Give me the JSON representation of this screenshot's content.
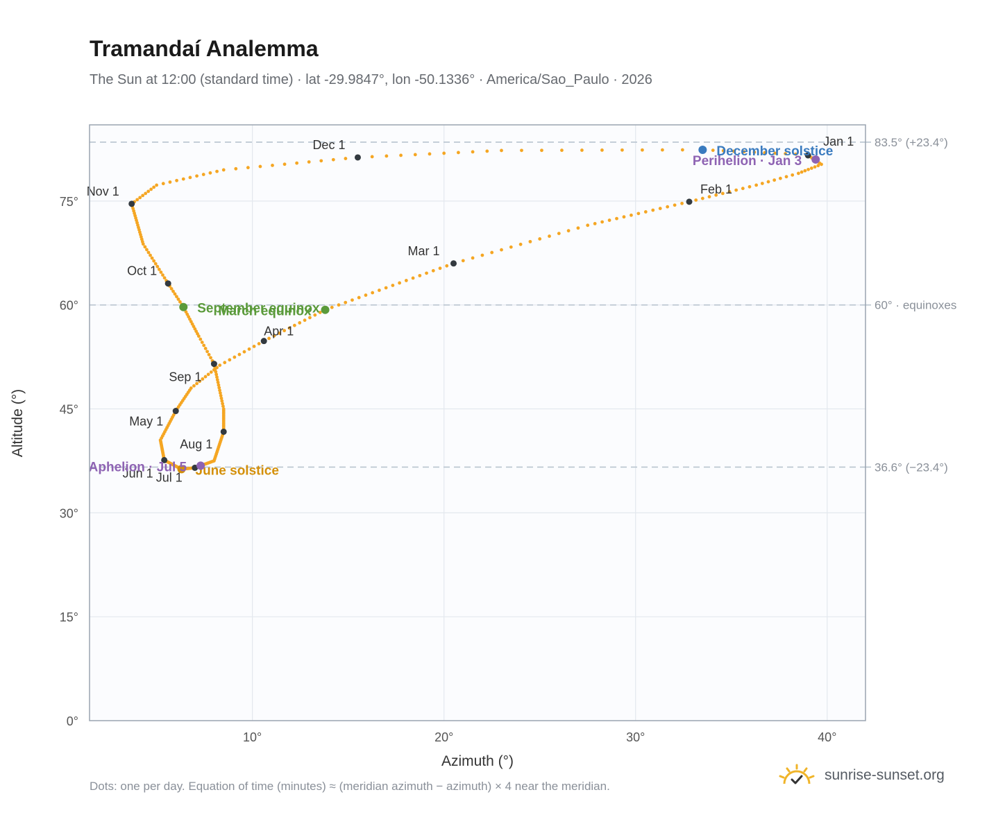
{
  "header": {
    "title": "Tramandaí Analemma",
    "subtitle": "The Sun at 12:00 (standard time) · lat -29.9847°, lon -50.1336° · America/Sao_Paulo · 2026"
  },
  "footer": {
    "note": "Dots: one per day. Equation of time (minutes) ≈ (meridian azimuth − azimuth) × 4 near the meridian.",
    "brand": "sunrise-sunset.org"
  },
  "chart_data": {
    "type": "scatter",
    "xlabel": "Azimuth (°)",
    "ylabel": "Altitude (°)",
    "xlim": [
      1.5,
      42
    ],
    "ylim": [
      0,
      86
    ],
    "x_ticks": [
      10,
      20,
      30,
      40
    ],
    "x_tick_labels": [
      "10°",
      "20°",
      "30°",
      "40°"
    ],
    "y_ticks": [
      0,
      15,
      30,
      45,
      60,
      75
    ],
    "y_tick_labels": [
      "0°",
      "15°",
      "30°",
      "45°",
      "60°",
      "75°"
    ],
    "grid": true,
    "reference_lines": [
      {
        "y": 83.5,
        "label": "83.5° (+23.4°)"
      },
      {
        "y": 60,
        "label": "60° · equinoxes"
      },
      {
        "y": 36.6,
        "label": "36.6° (−23.4°)"
      }
    ],
    "series": [
      {
        "daily_path": [
          {
            "date": "01-01",
            "az": 39.0,
            "alt": 81.6
          },
          {
            "date": "01-08",
            "az": 39.7,
            "alt": 80.3
          },
          {
            "date": "01-15",
            "az": 38.5,
            "alt": 79.0
          },
          {
            "date": "01-22",
            "az": 36.3,
            "alt": 77.3
          },
          {
            "date": "02-01",
            "az": 32.8,
            "alt": 74.9
          },
          {
            "date": "02-15",
            "az": 27.5,
            "alt": 71.5
          },
          {
            "date": "03-01",
            "az": 20.5,
            "alt": 66.0
          },
          {
            "date": "03-20",
            "az": 13.8,
            "alt": 59.3
          },
          {
            "date": "04-01",
            "az": 10.6,
            "alt": 54.8
          },
          {
            "date": "04-10",
            "az": 8.3,
            "alt": 51.3
          },
          {
            "date": "04-20",
            "az": 6.8,
            "alt": 48.0
          },
          {
            "date": "05-01",
            "az": 6.0,
            "alt": 44.7
          },
          {
            "date": "05-15",
            "az": 5.2,
            "alt": 40.5
          },
          {
            "date": "06-01",
            "az": 5.4,
            "alt": 37.6
          },
          {
            "date": "06-21",
            "az": 6.3,
            "alt": 36.3
          },
          {
            "date": "07-01",
            "az": 7.0,
            "alt": 36.5
          },
          {
            "date": "07-05",
            "az": 7.3,
            "alt": 36.8
          },
          {
            "date": "07-15",
            "az": 8.0,
            "alt": 37.5
          },
          {
            "date": "08-01",
            "az": 8.5,
            "alt": 41.7
          },
          {
            "date": "08-15",
            "az": 8.5,
            "alt": 45.0
          },
          {
            "date": "09-01",
            "az": 8.0,
            "alt": 51.5
          },
          {
            "date": "09-10",
            "az": 7.2,
            "alt": 55.5
          },
          {
            "date": "09-22",
            "az": 6.4,
            "alt": 59.7
          },
          {
            "date": "10-01",
            "az": 5.6,
            "alt": 63.1
          },
          {
            "date": "10-15",
            "az": 4.3,
            "alt": 68.8
          },
          {
            "date": "11-01",
            "az": 3.7,
            "alt": 74.6
          },
          {
            "date": "11-10",
            "az": 5.0,
            "alt": 77.3
          },
          {
            "date": "11-20",
            "az": 8.5,
            "alt": 79.5
          },
          {
            "date": "12-01",
            "az": 15.5,
            "alt": 81.3
          },
          {
            "date": "12-11",
            "az": 23.0,
            "alt": 82.3
          },
          {
            "date": "12-21",
            "az": 33.5,
            "alt": 82.4
          },
          {
            "date": "12-31",
            "az": 38.9,
            "alt": 81.7
          }
        ]
      }
    ],
    "month_markers": [
      {
        "label": "Jan 1",
        "az": 39.0,
        "alt": 81.6
      },
      {
        "label": "Feb 1",
        "az": 32.8,
        "alt": 74.9
      },
      {
        "label": "Mar 1",
        "az": 20.5,
        "alt": 66.0
      },
      {
        "label": "Apr 1",
        "az": 10.6,
        "alt": 54.8
      },
      {
        "label": "May 1",
        "az": 6.0,
        "alt": 44.7
      },
      {
        "label": "Jun 1",
        "az": 5.4,
        "alt": 37.6
      },
      {
        "label": "Jul 1",
        "az": 7.0,
        "alt": 36.5
      },
      {
        "label": "Aug 1",
        "az": 8.5,
        "alt": 41.7
      },
      {
        "label": "Sep 1",
        "az": 8.0,
        "alt": 51.5
      },
      {
        "label": "Oct 1",
        "az": 5.6,
        "alt": 63.1
      },
      {
        "label": "Nov 1",
        "az": 3.7,
        "alt": 74.6
      },
      {
        "label": "Dec 1",
        "az": 15.5,
        "alt": 81.3
      }
    ],
    "events": [
      {
        "label": "December solstice",
        "az": 33.5,
        "alt": 82.4,
        "color": "#3a7bbf"
      },
      {
        "label": "Perihelion · Jan 3",
        "az": 39.4,
        "alt": 81.0,
        "color": "#8e63b3"
      },
      {
        "label": "September equinox",
        "az": 6.4,
        "alt": 59.7,
        "color": "#5a9a3a"
      },
      {
        "label": "March equinox",
        "az": 13.8,
        "alt": 59.3,
        "color": "#5a9a3a"
      },
      {
        "label": "June solstice",
        "az": 6.3,
        "alt": 36.3,
        "color": "#d4900a"
      },
      {
        "label": "Aphelion · Jul 5",
        "az": 7.3,
        "alt": 36.8,
        "color": "#8e63b3"
      }
    ],
    "colors": {
      "path": "#f5a623",
      "marker": "#333a40",
      "reference_line": "#b8c4cf",
      "plot_bg": "#fbfcfe",
      "plot_border": "#9aa4b0",
      "grid": "#e3e8ee"
    }
  }
}
